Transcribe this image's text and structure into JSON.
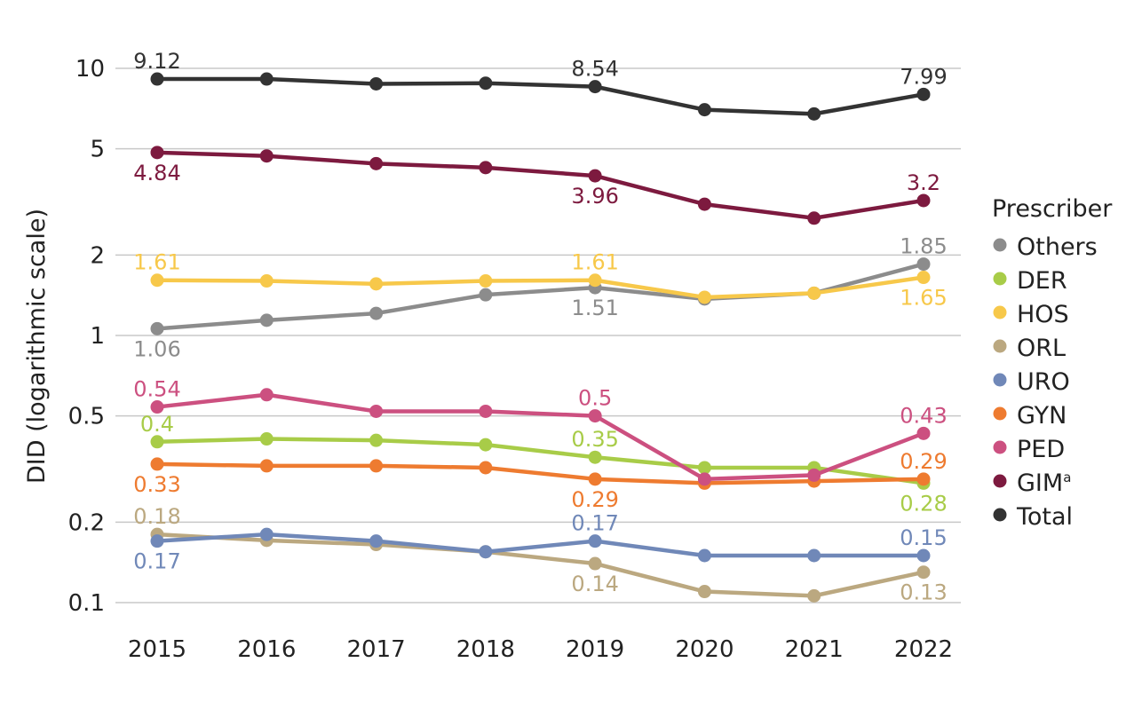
{
  "chart_data": {
    "type": "line",
    "scale": "log",
    "ylabel": "DID (logarithmic scale)",
    "categories": [
      "2015",
      "2016",
      "2017",
      "2018",
      "2019",
      "2020",
      "2021",
      "2022"
    ],
    "yticks": [
      {
        "value": 10,
        "label": "10"
      },
      {
        "value": 5,
        "label": "5"
      },
      {
        "value": 2,
        "label": "2"
      },
      {
        "value": 1,
        "label": "1"
      },
      {
        "value": 0.5,
        "label": "0.5"
      },
      {
        "value": 0.2,
        "label": "0.2"
      },
      {
        "value": 0.1,
        "label": "0.1"
      }
    ],
    "ylim": [
      0.09,
      12
    ],
    "legend_title": "Prescriber",
    "legend_position": "right",
    "legend": [
      {
        "label": "Others",
        "color": "#8c8c8c",
        "series": 0
      },
      {
        "label": "DER",
        "color": "#a8cc48",
        "series": 1
      },
      {
        "label": "HOS",
        "color": "#f7c84a",
        "series": 2
      },
      {
        "label": "ORL",
        "color": "#bba880",
        "series": 3
      },
      {
        "label": "URO",
        "color": "#7088b8",
        "series": 4
      },
      {
        "label": "GYN",
        "color": "#ee7b30",
        "series": 5
      },
      {
        "label": "PED",
        "color": "#cc5080",
        "series": 6
      },
      {
        "label": "GIM",
        "sup": "a",
        "color": "#7d1a3f",
        "series": 7
      },
      {
        "label": "Total",
        "color": "#333333",
        "series": 8
      }
    ],
    "series": [
      {
        "name": "Others",
        "color": "#8c8c8c",
        "values": [
          1.06,
          1.14,
          1.21,
          1.42,
          1.51,
          1.37,
          1.44,
          1.85
        ],
        "labels": [
          {
            "i": 0,
            "text": "1.06",
            "pos": "below"
          },
          {
            "i": 4,
            "text": "1.51",
            "pos": "below"
          },
          {
            "i": 7,
            "text": "1.85",
            "pos": "above"
          }
        ]
      },
      {
        "name": "DER",
        "color": "#a8cc48",
        "values": [
          0.4,
          0.41,
          0.405,
          0.39,
          0.35,
          0.32,
          0.32,
          0.28
        ],
        "labels": [
          {
            "i": 0,
            "text": "0.4",
            "pos": "above"
          },
          {
            "i": 4,
            "text": "0.35",
            "pos": "above"
          },
          {
            "i": 7,
            "text": "0.28",
            "pos": "below"
          }
        ]
      },
      {
        "name": "HOS",
        "color": "#f7c84a",
        "values": [
          1.61,
          1.6,
          1.56,
          1.6,
          1.61,
          1.39,
          1.44,
          1.65
        ],
        "labels": [
          {
            "i": 0,
            "text": "1.61",
            "pos": "above"
          },
          {
            "i": 4,
            "text": "1.61",
            "pos": "above"
          },
          {
            "i": 7,
            "text": "1.65",
            "pos": "below"
          }
        ]
      },
      {
        "name": "ORL",
        "color": "#bba880",
        "values": [
          0.18,
          0.171,
          0.165,
          0.155,
          0.14,
          0.11,
          0.106,
          0.13
        ],
        "labels": [
          {
            "i": 0,
            "text": "0.18",
            "pos": "above"
          },
          {
            "i": 4,
            "text": "0.14",
            "pos": "below"
          },
          {
            "i": 7,
            "text": "0.13",
            "pos": "below"
          }
        ]
      },
      {
        "name": "URO",
        "color": "#7088b8",
        "values": [
          0.17,
          0.18,
          0.17,
          0.155,
          0.17,
          0.15,
          0.15,
          0.15
        ],
        "labels": [
          {
            "i": 0,
            "text": "0.17",
            "pos": "below"
          },
          {
            "i": 4,
            "text": "0.17",
            "pos": "above"
          },
          {
            "i": 7,
            "text": "0.15",
            "pos": "above"
          }
        ]
      },
      {
        "name": "GYN",
        "color": "#ee7b30",
        "values": [
          0.33,
          0.325,
          0.325,
          0.32,
          0.29,
          0.28,
          0.285,
          0.29
        ],
        "labels": [
          {
            "i": 0,
            "text": "0.33",
            "pos": "below"
          },
          {
            "i": 4,
            "text": "0.29",
            "pos": "below"
          },
          {
            "i": 7,
            "text": "0.29",
            "pos": "above"
          }
        ]
      },
      {
        "name": "PED",
        "color": "#cc5080",
        "values": [
          0.54,
          0.6,
          0.52,
          0.52,
          0.5,
          0.29,
          0.3,
          0.43
        ],
        "labels": [
          {
            "i": 0,
            "text": "0.54",
            "pos": "above"
          },
          {
            "i": 4,
            "text": "0.5",
            "pos": "above"
          },
          {
            "i": 7,
            "text": "0.43",
            "pos": "above"
          }
        ]
      },
      {
        "name": "GIM",
        "color": "#7d1a3f",
        "values": [
          4.84,
          4.7,
          4.4,
          4.25,
          3.96,
          3.1,
          2.75,
          3.2
        ],
        "labels": [
          {
            "i": 0,
            "text": "4.84",
            "pos": "below"
          },
          {
            "i": 4,
            "text": "3.96",
            "pos": "below"
          },
          {
            "i": 7,
            "text": "3.2",
            "pos": "above"
          }
        ]
      },
      {
        "name": "Total",
        "color": "#333333",
        "values": [
          9.12,
          9.12,
          8.75,
          8.8,
          8.54,
          7.0,
          6.75,
          7.99
        ],
        "labels": [
          {
            "i": 0,
            "text": "9.12",
            "pos": "above"
          },
          {
            "i": 4,
            "text": "8.54",
            "pos": "above"
          },
          {
            "i": 7,
            "text": "7.99",
            "pos": "above"
          }
        ]
      }
    ]
  }
}
